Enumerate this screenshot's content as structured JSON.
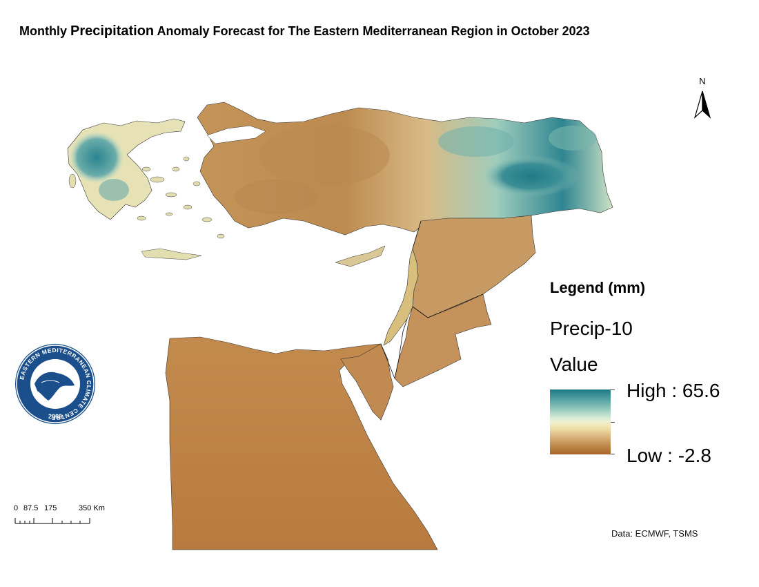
{
  "title": {
    "part1": "Monthly ",
    "part2": "Precipitation",
    "part3": " Anomaly Forecast for The Eastern Mediterranean Region in October 2023"
  },
  "north_arrow": {
    "label": "N"
  },
  "legend": {
    "heading": "Legend (mm)",
    "layer": "Precip-10",
    "field": "Value",
    "high_label": "High : 65.6",
    "low_label": "Low : -2.8",
    "high_value": 65.6,
    "low_value": -2.8,
    "colors": {
      "high": "#1f7a86",
      "mid": "#f1f0cf",
      "low": "#a8652b"
    }
  },
  "scale_bar": {
    "labels": [
      "0",
      "87.5",
      "175",
      "350 Km"
    ]
  },
  "source": "Data: ECMWF, TSMS",
  "logo": {
    "ring_text": "EASTERN MEDITERRANEAN CLIMATE CENTRE",
    "year": "2009"
  }
}
